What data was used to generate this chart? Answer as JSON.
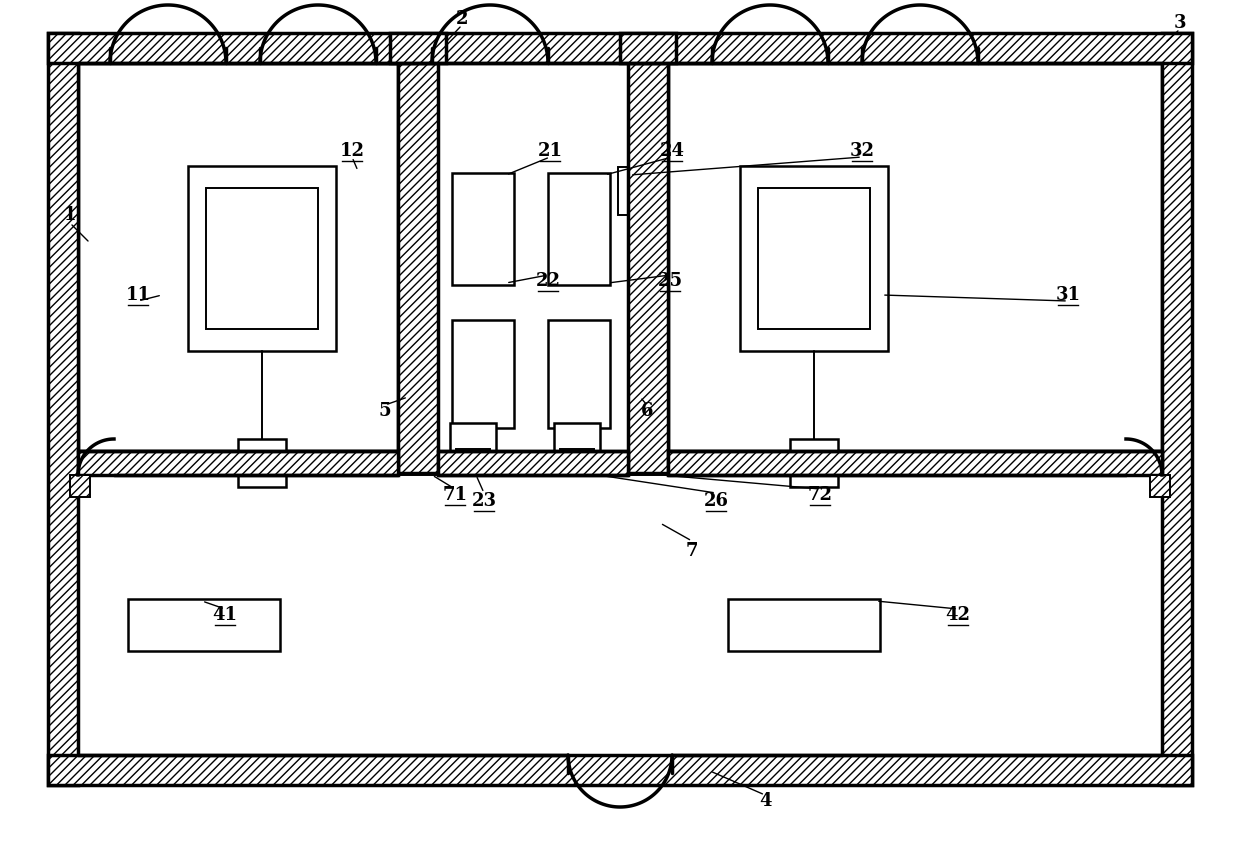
{
  "bg_color": "#ffffff",
  "line_color": "#000000",
  "fig_width": 12.4,
  "fig_height": 8.43
}
